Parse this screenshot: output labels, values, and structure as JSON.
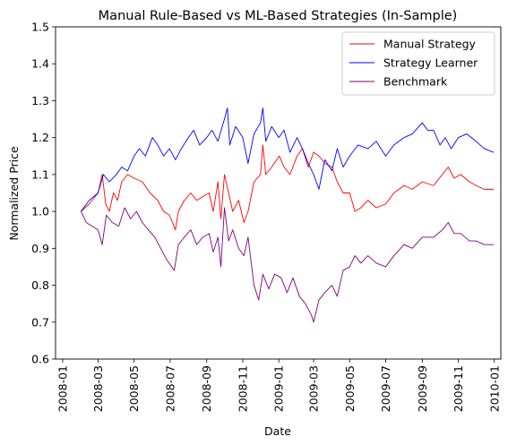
{
  "chart_data": {
    "type": "line",
    "title": "Manual Rule-Based vs ML-Based Strategies (In-Sample)",
    "xlabel": "Date",
    "ylabel": "Normalized Price",
    "xlim": [
      "2007-12-20",
      "2010-01-12"
    ],
    "ylim": [
      0.6,
      1.5
    ],
    "x_ticks": [
      "2008-01",
      "2008-03",
      "2008-05",
      "2008-07",
      "2008-09",
      "2008-11",
      "2009-01",
      "2009-03",
      "2009-05",
      "2009-07",
      "2009-09",
      "2009-11",
      "2010-01"
    ],
    "y_ticks": [
      "0.6",
      "0.7",
      "0.8",
      "0.9",
      "1.0",
      "1.1",
      "1.2",
      "1.3",
      "1.4",
      "1.5"
    ],
    "grid": false,
    "legend": "top-right",
    "series": [
      {
        "name": "Manual Strategy",
        "color": "#ff0000",
        "points": [
          [
            "2008-02-01",
            1.0
          ],
          [
            "2008-02-15",
            1.02
          ],
          [
            "2008-03-01",
            1.05
          ],
          [
            "2008-03-08",
            1.1
          ],
          [
            "2008-03-14",
            1.02
          ],
          [
            "2008-03-20",
            1.0
          ],
          [
            "2008-03-27",
            1.05
          ],
          [
            "2008-04-03",
            1.03
          ],
          [
            "2008-04-10",
            1.08
          ],
          [
            "2008-04-20",
            1.1
          ],
          [
            "2008-05-01",
            1.09
          ],
          [
            "2008-05-15",
            1.08
          ],
          [
            "2008-05-28",
            1.05
          ],
          [
            "2008-06-10",
            1.03
          ],
          [
            "2008-06-20",
            1.0
          ],
          [
            "2008-06-30",
            0.99
          ],
          [
            "2008-07-10",
            0.95
          ],
          [
            "2008-07-15",
            1.0
          ],
          [
            "2008-07-25",
            1.03
          ],
          [
            "2008-08-05",
            1.05
          ],
          [
            "2008-08-15",
            1.03
          ],
          [
            "2008-08-25",
            1.04
          ],
          [
            "2008-09-05",
            1.05
          ],
          [
            "2008-09-12",
            1.0
          ],
          [
            "2008-09-20",
            1.08
          ],
          [
            "2008-09-25",
            0.98
          ],
          [
            "2008-10-01",
            1.1
          ],
          [
            "2008-10-08",
            1.05
          ],
          [
            "2008-10-15",
            1.0
          ],
          [
            "2008-10-25",
            1.03
          ],
          [
            "2008-11-03",
            0.97
          ],
          [
            "2008-11-10",
            1.0
          ],
          [
            "2008-11-20",
            1.08
          ],
          [
            "2008-12-01",
            1.1
          ],
          [
            "2008-12-05",
            1.18
          ],
          [
            "2008-12-10",
            1.1
          ],
          [
            "2008-12-20",
            1.12
          ],
          [
            "2009-01-02",
            1.15
          ],
          [
            "2009-01-10",
            1.12
          ],
          [
            "2009-01-20",
            1.1
          ],
          [
            "2009-02-01",
            1.15
          ],
          [
            "2009-02-10",
            1.17
          ],
          [
            "2009-02-20",
            1.12
          ],
          [
            "2009-03-01",
            1.16
          ],
          [
            "2009-03-10",
            1.15
          ],
          [
            "2009-03-20",
            1.13
          ],
          [
            "2009-04-01",
            1.12
          ],
          [
            "2009-04-10",
            1.08
          ],
          [
            "2009-04-20",
            1.05
          ],
          [
            "2009-05-01",
            1.05
          ],
          [
            "2009-05-10",
            1.0
          ],
          [
            "2009-05-20",
            1.01
          ],
          [
            "2009-06-01",
            1.03
          ],
          [
            "2009-06-15",
            1.01
          ],
          [
            "2009-07-01",
            1.02
          ],
          [
            "2009-07-15",
            1.05
          ],
          [
            "2009-08-01",
            1.07
          ],
          [
            "2009-08-15",
            1.06
          ],
          [
            "2009-09-01",
            1.08
          ],
          [
            "2009-09-20",
            1.07
          ],
          [
            "2009-10-05",
            1.1
          ],
          [
            "2009-10-15",
            1.12
          ],
          [
            "2009-10-25",
            1.09
          ],
          [
            "2009-11-05",
            1.1
          ],
          [
            "2009-11-20",
            1.08
          ],
          [
            "2009-12-01",
            1.07
          ],
          [
            "2009-12-15",
            1.06
          ],
          [
            "2009-12-31",
            1.06
          ]
        ]
      },
      {
        "name": "Strategy Learner",
        "color": "#0000ff",
        "points": [
          [
            "2008-02-01",
            1.0
          ],
          [
            "2008-02-15",
            1.03
          ],
          [
            "2008-03-01",
            1.05
          ],
          [
            "2008-03-10",
            1.1
          ],
          [
            "2008-03-20",
            1.08
          ],
          [
            "2008-04-01",
            1.1
          ],
          [
            "2008-04-10",
            1.12
          ],
          [
            "2008-04-20",
            1.11
          ],
          [
            "2008-05-01",
            1.15
          ],
          [
            "2008-05-10",
            1.17
          ],
          [
            "2008-05-20",
            1.15
          ],
          [
            "2008-06-01",
            1.2
          ],
          [
            "2008-06-10",
            1.18
          ],
          [
            "2008-06-20",
            1.15
          ],
          [
            "2008-06-30",
            1.17
          ],
          [
            "2008-07-10",
            1.14
          ],
          [
            "2008-07-20",
            1.17
          ],
          [
            "2008-08-01",
            1.2
          ],
          [
            "2008-08-10",
            1.22
          ],
          [
            "2008-08-20",
            1.18
          ],
          [
            "2008-09-01",
            1.2
          ],
          [
            "2008-09-10",
            1.22
          ],
          [
            "2008-09-20",
            1.19
          ],
          [
            "2008-10-01",
            1.25
          ],
          [
            "2008-10-06",
            1.28
          ],
          [
            "2008-10-10",
            1.18
          ],
          [
            "2008-10-20",
            1.23
          ],
          [
            "2008-11-01",
            1.2
          ],
          [
            "2008-11-10",
            1.13
          ],
          [
            "2008-11-20",
            1.21
          ],
          [
            "2008-12-01",
            1.24
          ],
          [
            "2008-12-05",
            1.28
          ],
          [
            "2008-12-10",
            1.19
          ],
          [
            "2008-12-20",
            1.23
          ],
          [
            "2009-01-01",
            1.2
          ],
          [
            "2009-01-10",
            1.22
          ],
          [
            "2009-01-20",
            1.16
          ],
          [
            "2009-02-01",
            1.2
          ],
          [
            "2009-02-10",
            1.17
          ],
          [
            "2009-02-20",
            1.13
          ],
          [
            "2009-03-01",
            1.1
          ],
          [
            "2009-03-10",
            1.06
          ],
          [
            "2009-03-20",
            1.14
          ],
          [
            "2009-04-01",
            1.11
          ],
          [
            "2009-04-10",
            1.17
          ],
          [
            "2009-04-20",
            1.12
          ],
          [
            "2009-05-01",
            1.15
          ],
          [
            "2009-05-15",
            1.18
          ],
          [
            "2009-06-01",
            1.17
          ],
          [
            "2009-06-15",
            1.19
          ],
          [
            "2009-07-01",
            1.15
          ],
          [
            "2009-07-15",
            1.18
          ],
          [
            "2009-08-01",
            1.2
          ],
          [
            "2009-08-15",
            1.21
          ],
          [
            "2009-09-01",
            1.24
          ],
          [
            "2009-09-10",
            1.22
          ],
          [
            "2009-09-20",
            1.22
          ],
          [
            "2009-10-01",
            1.18
          ],
          [
            "2009-10-10",
            1.2
          ],
          [
            "2009-10-20",
            1.17
          ],
          [
            "2009-11-01",
            1.2
          ],
          [
            "2009-11-15",
            1.21
          ],
          [
            "2009-12-01",
            1.19
          ],
          [
            "2009-12-15",
            1.17
          ],
          [
            "2009-12-31",
            1.16
          ]
        ]
      },
      {
        "name": "Benchmark",
        "color": "#800080",
        "points": [
          [
            "2008-02-01",
            1.0
          ],
          [
            "2008-02-10",
            0.97
          ],
          [
            "2008-02-20",
            0.96
          ],
          [
            "2008-03-01",
            0.95
          ],
          [
            "2008-03-08",
            0.91
          ],
          [
            "2008-03-15",
            0.99
          ],
          [
            "2008-03-25",
            0.97
          ],
          [
            "2008-04-05",
            0.96
          ],
          [
            "2008-04-15",
            1.01
          ],
          [
            "2008-04-25",
            0.98
          ],
          [
            "2008-05-05",
            1.0
          ],
          [
            "2008-05-15",
            0.97
          ],
          [
            "2008-05-25",
            0.95
          ],
          [
            "2008-06-05",
            0.93
          ],
          [
            "2008-06-15",
            0.9
          ],
          [
            "2008-06-25",
            0.87
          ],
          [
            "2008-07-08",
            0.84
          ],
          [
            "2008-07-15",
            0.91
          ],
          [
            "2008-07-25",
            0.93
          ],
          [
            "2008-08-05",
            0.95
          ],
          [
            "2008-08-15",
            0.91
          ],
          [
            "2008-08-25",
            0.93
          ],
          [
            "2008-09-05",
            0.94
          ],
          [
            "2008-09-12",
            0.89
          ],
          [
            "2008-09-20",
            0.93
          ],
          [
            "2008-09-25",
            0.85
          ],
          [
            "2008-10-01",
            1.01
          ],
          [
            "2008-10-08",
            0.92
          ],
          [
            "2008-10-15",
            0.95
          ],
          [
            "2008-10-25",
            0.9
          ],
          [
            "2008-11-03",
            0.88
          ],
          [
            "2008-11-10",
            0.93
          ],
          [
            "2008-11-20",
            0.8
          ],
          [
            "2008-11-28",
            0.76
          ],
          [
            "2008-12-05",
            0.83
          ],
          [
            "2008-12-15",
            0.79
          ],
          [
            "2008-12-25",
            0.83
          ],
          [
            "2009-01-05",
            0.82
          ],
          [
            "2009-01-15",
            0.78
          ],
          [
            "2009-01-25",
            0.82
          ],
          [
            "2009-02-05",
            0.77
          ],
          [
            "2009-02-15",
            0.75
          ],
          [
            "2009-02-25",
            0.72
          ],
          [
            "2009-03-01",
            0.7
          ],
          [
            "2009-03-10",
            0.76
          ],
          [
            "2009-03-20",
            0.78
          ],
          [
            "2009-04-01",
            0.8
          ],
          [
            "2009-04-10",
            0.77
          ],
          [
            "2009-04-20",
            0.84
          ],
          [
            "2009-05-01",
            0.85
          ],
          [
            "2009-05-10",
            0.88
          ],
          [
            "2009-05-20",
            0.86
          ],
          [
            "2009-06-01",
            0.88
          ],
          [
            "2009-06-15",
            0.86
          ],
          [
            "2009-07-01",
            0.85
          ],
          [
            "2009-07-15",
            0.88
          ],
          [
            "2009-08-01",
            0.91
          ],
          [
            "2009-08-15",
            0.9
          ],
          [
            "2009-09-01",
            0.93
          ],
          [
            "2009-09-20",
            0.93
          ],
          [
            "2009-10-05",
            0.95
          ],
          [
            "2009-10-15",
            0.97
          ],
          [
            "2009-10-25",
            0.94
          ],
          [
            "2009-11-05",
            0.94
          ],
          [
            "2009-11-20",
            0.92
          ],
          [
            "2009-12-01",
            0.92
          ],
          [
            "2009-12-15",
            0.91
          ],
          [
            "2009-12-31",
            0.91
          ]
        ]
      }
    ]
  }
}
